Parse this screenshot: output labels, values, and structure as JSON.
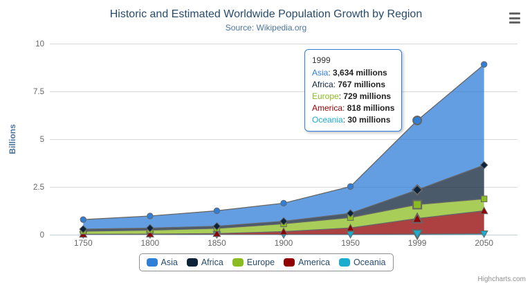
{
  "title": "Historic and Estimated Worldwide Population Growth by Region",
  "subtitle": "Source: Wikipedia.org",
  "y_axis_title": "Billions",
  "credits": "Highcharts.com",
  "colors": {
    "title": "#274b6d",
    "subtitle": "#4d759e",
    "axis_labels": "#666666",
    "axis_title": "#4d759e",
    "gridline": "#d8d8d8",
    "axis_line": "#c0d0e0",
    "area_outline": "#666666",
    "legend_border": "#909090",
    "legend_text": "#274b6d"
  },
  "tooltip": {
    "header": "1999",
    "border_color": "#2f7ed8",
    "unit": "millions",
    "rows": [
      {
        "name": "Asia",
        "value": "3,634 millions"
      },
      {
        "name": "Africa",
        "value": "767 millions"
      },
      {
        "name": "Europe",
        "value": "729 millions"
      },
      {
        "name": "America",
        "value": "818 millions"
      },
      {
        "name": "Oceania",
        "value": "30 millions"
      }
    ]
  },
  "chart_data": {
    "type": "area",
    "stacking": "normal",
    "title": "Historic and Estimated Worldwide Population Growth by Region",
    "subtitle": "Source: Wikipedia.org",
    "categories": [
      "1750",
      "1800",
      "1850",
      "1900",
      "1950",
      "1999",
      "2050"
    ],
    "series": [
      {
        "name": "Asia",
        "color": "#2f7ed8",
        "marker": "circle",
        "values_millions": [
          502,
          635,
          809,
          947,
          1402,
          3634,
          5268
        ]
      },
      {
        "name": "Africa",
        "color": "#0d233a",
        "marker": "diamond",
        "values_millions": [
          106,
          107,
          111,
          133,
          221,
          767,
          1766
        ]
      },
      {
        "name": "Europe",
        "color": "#8bbc21",
        "marker": "square",
        "values_millions": [
          163,
          203,
          276,
          408,
          547,
          729,
          628
        ]
      },
      {
        "name": "America",
        "color": "#910000",
        "marker": "triangle",
        "values_millions": [
          18,
          31,
          54,
          156,
          339,
          818,
          1201
        ]
      },
      {
        "name": "Oceania",
        "color": "#1aadce",
        "marker": "triangle-down",
        "values_millions": [
          2,
          2,
          2,
          6,
          13,
          30,
          46
        ]
      }
    ],
    "xlabel": "",
    "ylabel": "Billions",
    "ylim": [
      0,
      10
    ],
    "yticks": [
      "0",
      "2.5",
      "5",
      "7.5",
      "10"
    ],
    "grid": "horizontal",
    "legend_position": "bottom",
    "fill_opacity": 0.75,
    "hover_category": "1999"
  }
}
